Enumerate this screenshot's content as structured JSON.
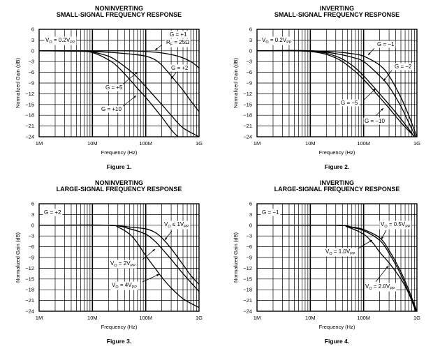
{
  "chart_data": [
    {
      "type": "line",
      "title": [
        "NONINVERTING",
        "SMALL-SIGNAL FREQUENCY RESPONSE"
      ],
      "caption": "Figure 1.",
      "xlabel": "Frequency (Hz)",
      "ylabel": "Normalized Gain (dB)",
      "xscale": "log",
      "xlim_mhz": [
        1,
        1000
      ],
      "xticks": [
        "1M",
        "10M",
        "100M",
        "1G"
      ],
      "ylim": [
        -24,
        6
      ],
      "yticks": [
        "6",
        "3",
        "0",
        "−3",
        "−6",
        "−9",
        "−12",
        "−15",
        "−18",
        "−21",
        "−24"
      ],
      "grid": true,
      "annotations": [
        [
          {
            "t": "V"
          },
          {
            "s": "O"
          },
          {
            "t": " = 0.2V"
          },
          {
            "s": "PP"
          }
        ],
        [
          {
            "t": "G = +1"
          }
        ],
        [
          {
            "t": "R"
          },
          {
            "s": "F"
          },
          {
            "t": " = 25Ω"
          }
        ],
        [
          {
            "t": "G = +2"
          }
        ],
        [
          {
            "t": "G = +5"
          }
        ],
        [
          {
            "t": "G = +10"
          }
        ]
      ],
      "series": [
        {
          "name": "G = +1, RF = 25Ω",
          "x_mhz": [
            1,
            10,
            50,
            100,
            200,
            400,
            700,
            1000
          ],
          "y": [
            0,
            0,
            0,
            -0.2,
            -0.6,
            -1.5,
            -3,
            -4.8
          ]
        },
        {
          "name": "G = +2",
          "x_mhz": [
            1,
            10,
            30,
            60,
            100,
            150,
            200,
            300,
            500,
            700,
            1000
          ],
          "y": [
            0,
            -0.2,
            -0.6,
            -1,
            -1.5,
            -2.5,
            -4,
            -7,
            -11,
            -14,
            -17
          ]
        },
        {
          "name": "G = +5",
          "x_mhz": [
            1,
            7,
            10,
            20,
            30,
            50,
            70,
            100,
            200,
            300,
            500,
            1000
          ],
          "y": [
            0,
            0,
            -0.3,
            -1.5,
            -3,
            -5.5,
            -7.5,
            -10,
            -15,
            -18,
            -21.5,
            -24
          ]
        },
        {
          "name": "G = +10",
          "x_mhz": [
            1,
            5,
            10,
            20,
            30,
            50,
            70,
            100,
            200,
            300,
            400
          ],
          "y": [
            0,
            0,
            -0.5,
            -2.5,
            -4.5,
            -8,
            -10.5,
            -13,
            -18.5,
            -22,
            -24
          ]
        }
      ]
    },
    {
      "type": "line",
      "title": [
        "INVERTING",
        "SMALL-SIGNAL FREQUENCY RESPONSE"
      ],
      "caption": "Figure 2.",
      "xlabel": "Frequency (Hz)",
      "ylabel": "Normalized Gain (dB)",
      "xscale": "log",
      "xlim_mhz": [
        1,
        1000
      ],
      "xticks": [
        "1M",
        "10M",
        "100M",
        "1G"
      ],
      "ylim": [
        -24,
        6
      ],
      "yticks": [
        "6",
        "3",
        "0",
        "−3",
        "−6",
        "−9",
        "−12",
        "−15",
        "−18",
        "−21",
        "−24"
      ],
      "grid": true,
      "annotations": [
        [
          {
            "t": "V"
          },
          {
            "s": "O"
          },
          {
            "t": " = 0.2V"
          },
          {
            "s": "PP"
          }
        ],
        [
          {
            "t": "G = −1"
          }
        ],
        [
          {
            "t": "G = −2"
          }
        ],
        [
          {
            "t": "G = −5"
          }
        ],
        [
          {
            "t": "G = −10"
          }
        ]
      ],
      "series": [
        {
          "name": "G = −1",
          "x_mhz": [
            1,
            10,
            30,
            60,
            100,
            200,
            300,
            500,
            700,
            1000
          ],
          "y": [
            0,
            0,
            -0.3,
            -0.8,
            -1.5,
            -4,
            -7,
            -13,
            -18,
            -24
          ]
        },
        {
          "name": "G = −2",
          "x_mhz": [
            1,
            10,
            30,
            60,
            100,
            200,
            300,
            500,
            700,
            950
          ],
          "y": [
            0,
            0,
            -0.8,
            -1.8,
            -3,
            -7,
            -10,
            -15.5,
            -20,
            -24
          ]
        },
        {
          "name": "G = −5",
          "x_mhz": [
            1,
            10,
            30,
            60,
            100,
            200,
            300,
            500,
            900
          ],
          "y": [
            0,
            0,
            -1.5,
            -4,
            -7,
            -12,
            -15,
            -19,
            -24
          ]
        },
        {
          "name": "G = −10",
          "x_mhz": [
            1,
            10,
            30,
            60,
            100,
            200,
            300,
            500,
            900
          ],
          "y": [
            0,
            -0.2,
            -2,
            -5,
            -8,
            -13,
            -16,
            -20,
            -24
          ]
        }
      ]
    },
    {
      "type": "line",
      "title": [
        "NONINVERTING",
        "LARGE-SIGNAL FREQUENCY RESPONSE"
      ],
      "caption": "Figure 3.",
      "xlabel": "Frequency (Hz)",
      "ylabel": "Normalized Gain (dB)",
      "xscale": "log",
      "xlim_mhz": [
        1,
        1000
      ],
      "xticks": [
        "1M",
        "10M",
        "100M",
        "1G"
      ],
      "ylim": [
        -24,
        6
      ],
      "yticks": [
        "6",
        "3",
        "0",
        "−3",
        "−6",
        "−9",
        "−12",
        "−15",
        "−18",
        "−21",
        "−24"
      ],
      "grid": true,
      "annotations": [
        [
          {
            "t": "G = +2"
          }
        ],
        [
          {
            "t": "V"
          },
          {
            "s": "O"
          },
          {
            "t": " ≤ 1V"
          },
          {
            "s": "PP"
          }
        ],
        [
          {
            "t": "V"
          },
          {
            "s": "O"
          },
          {
            "t": " = 2V"
          },
          {
            "s": "PP"
          }
        ],
        [
          {
            "t": "V"
          },
          {
            "s": "O"
          },
          {
            "t": " = 4V"
          },
          {
            "s": "PP"
          }
        ]
      ],
      "series": [
        {
          "name": "VO ≤ 1VPP",
          "x_mhz": [
            1,
            20,
            50,
            100,
            150,
            200,
            300,
            500,
            700,
            1000
          ],
          "y": [
            0,
            0,
            -0.5,
            -1,
            -2,
            -3.5,
            -6.5,
            -11,
            -14,
            -16.5
          ]
        },
        {
          "name": "VO = 2VPP",
          "x_mhz": [
            1,
            20,
            50,
            100,
            150,
            200,
            300,
            500,
            1000
          ],
          "y": [
            0,
            0,
            -1,
            -2.5,
            -4.5,
            -6.5,
            -9.5,
            -13.5,
            -18.5
          ]
        },
        {
          "name": "VO = 4VPP",
          "x_mhz": [
            1,
            20,
            30,
            50,
            70,
            100,
            150,
            200,
            300,
            500,
            1000
          ],
          "y": [
            0,
            0,
            -0.5,
            -2.5,
            -5,
            -8.5,
            -12,
            -14.5,
            -17.5,
            -20.5,
            -23
          ]
        }
      ]
    },
    {
      "type": "line",
      "title": [
        "INVERTING",
        "LARGE-SIGNAL FREQUENCY RESPONSE"
      ],
      "caption": "Figure 4.",
      "xlabel": "Frequency (Hz)",
      "ylabel": "Normalized Gain (dB)",
      "xscale": "log",
      "xlim_mhz": [
        1,
        1000
      ],
      "xticks": [
        "1M",
        "10M",
        "100M",
        "1G"
      ],
      "ylim": [
        -24,
        6
      ],
      "yticks": [
        "6",
        "3",
        "0",
        "−3",
        "−6",
        "−9",
        "−12",
        "−15",
        "−18",
        "−21",
        "−24"
      ],
      "grid": true,
      "annotations": [
        [
          {
            "t": "G = −1"
          }
        ],
        [
          {
            "t": "V"
          },
          {
            "s": "O"
          },
          {
            "t": " = 0.5V"
          },
          {
            "s": "PP"
          }
        ],
        [
          {
            "t": "V"
          },
          {
            "s": "O"
          },
          {
            "t": " = 1.0V"
          },
          {
            "s": "PP"
          }
        ],
        [
          {
            "t": "V"
          },
          {
            "s": "O"
          },
          {
            "t": " = 2.0V"
          },
          {
            "s": "PP"
          }
        ]
      ],
      "series": [
        {
          "name": "VO = 0.5VPP",
          "x_mhz": [
            1,
            30,
            60,
            100,
            200,
            300,
            500,
            700,
            1000
          ],
          "y": [
            0,
            0,
            -0.5,
            -1.2,
            -3.5,
            -7,
            -13,
            -18,
            -24
          ]
        },
        {
          "name": "VO = 1.0VPP",
          "x_mhz": [
            1,
            30,
            60,
            100,
            200,
            300,
            500,
            700,
            980
          ],
          "y": [
            0,
            0,
            -0.6,
            -1.5,
            -4.2,
            -7.8,
            -13.8,
            -18.8,
            -24
          ]
        },
        {
          "name": "VO = 2.0VPP",
          "x_mhz": [
            1,
            30,
            50,
            100,
            150,
            200,
            300,
            500,
            700,
            950
          ],
          "y": [
            0,
            0,
            -0.5,
            -2.5,
            -5,
            -7.5,
            -10.5,
            -15,
            -19,
            -24
          ]
        }
      ]
    }
  ]
}
